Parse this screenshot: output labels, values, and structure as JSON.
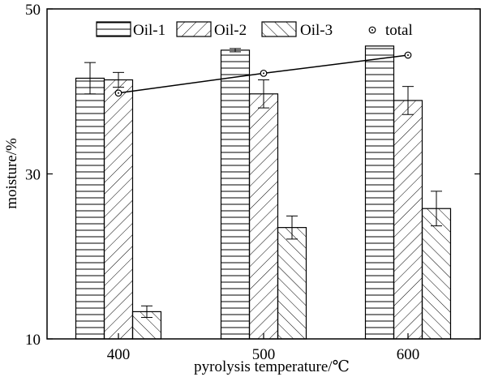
{
  "chart_data": {
    "type": "bar",
    "xlabel": "pyrolysis temperature/℃",
    "ylabel": "moisture/%",
    "categories": [
      "400",
      "500",
      "600"
    ],
    "y_ticks": [
      "10",
      "30",
      "50"
    ],
    "ylim": [
      10,
      50
    ],
    "legend_position": "top",
    "grid": false,
    "series": [
      {
        "name": "Oil-1",
        "pattern": "horizontal",
        "values": [
          41.6,
          45.0,
          45.5
        ],
        "errors": [
          1.9,
          0.2,
          0.0
        ]
      },
      {
        "name": "Oil-2",
        "pattern": "diagonal-up",
        "values": [
          41.4,
          39.7,
          38.9
        ],
        "errors": [
          0.9,
          1.7,
          1.7
        ]
      },
      {
        "name": "Oil-3",
        "pattern": "diagonal-down",
        "values": [
          13.3,
          23.5,
          25.8
        ],
        "errors": [
          0.7,
          1.4,
          2.1
        ]
      }
    ],
    "line_series": {
      "name": "total",
      "marker": "circle-dot",
      "values": [
        39.8,
        42.2,
        44.4
      ]
    }
  }
}
